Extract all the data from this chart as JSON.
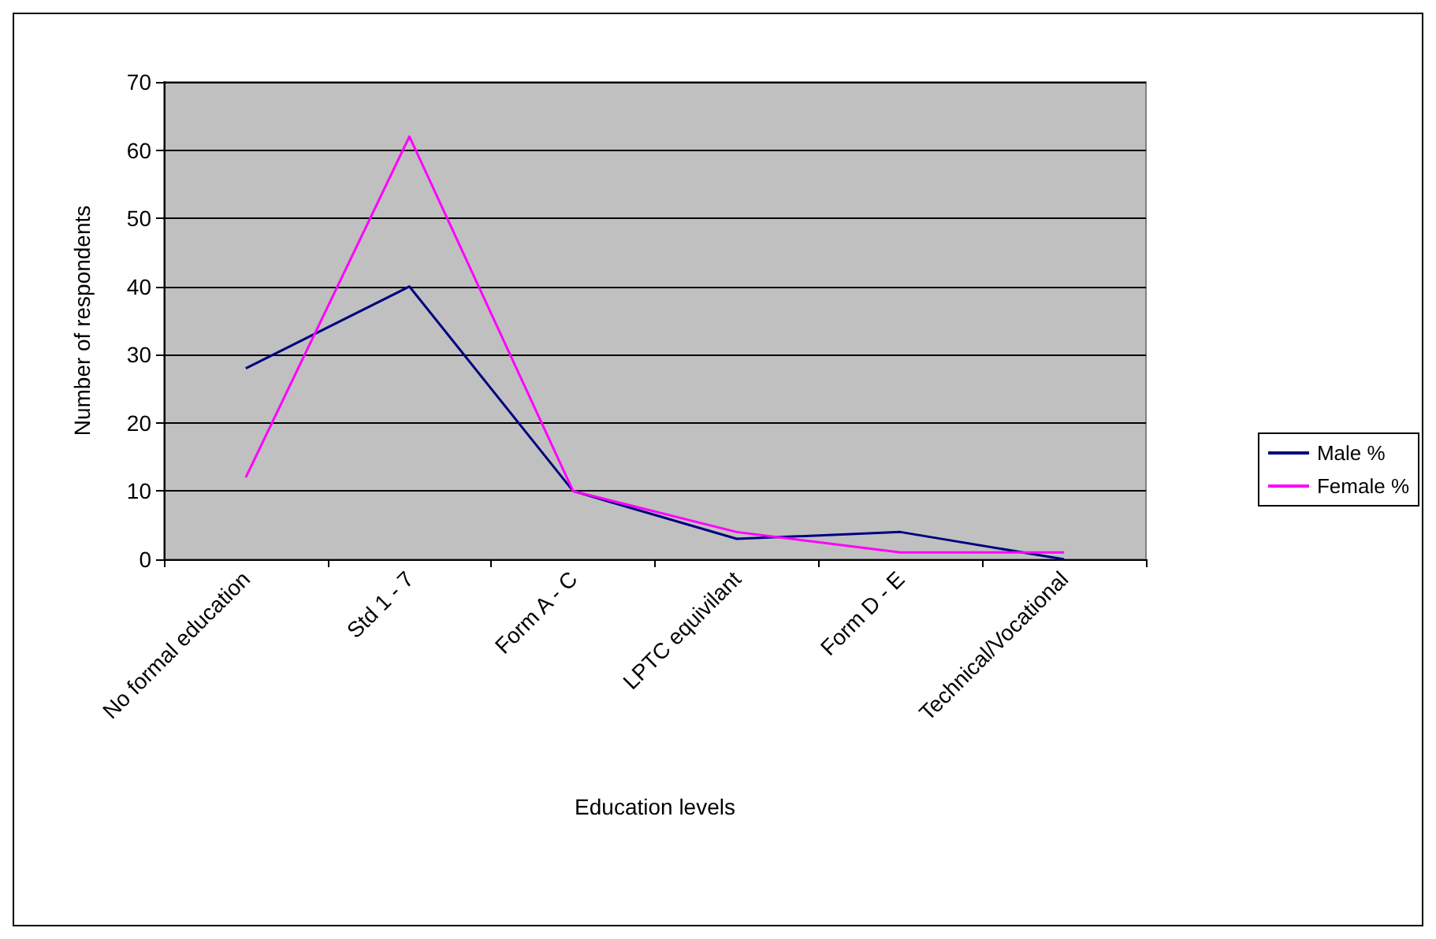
{
  "chart_data": {
    "type": "line",
    "xlabel": "Education levels",
    "ylabel": "Number of respondents",
    "categories": [
      "No formal education",
      "Std 1 - 7",
      "Form A - C",
      "LPTC equivilant",
      "Form D - E",
      "Technical/Vocational"
    ],
    "series": [
      {
        "name": "Male %",
        "color": "#000080",
        "values": [
          28,
          40,
          10,
          3,
          4,
          0
        ]
      },
      {
        "name": "Female %",
        "color": "#ff00ff",
        "values": [
          12,
          62,
          10,
          4,
          1,
          1
        ]
      }
    ],
    "ylim": [
      0,
      70
    ],
    "yticks": [
      0,
      10,
      20,
      30,
      40,
      50,
      60,
      70
    ],
    "grid": "y",
    "legend": "right",
    "marker": "none",
    "line_style": "solid"
  }
}
